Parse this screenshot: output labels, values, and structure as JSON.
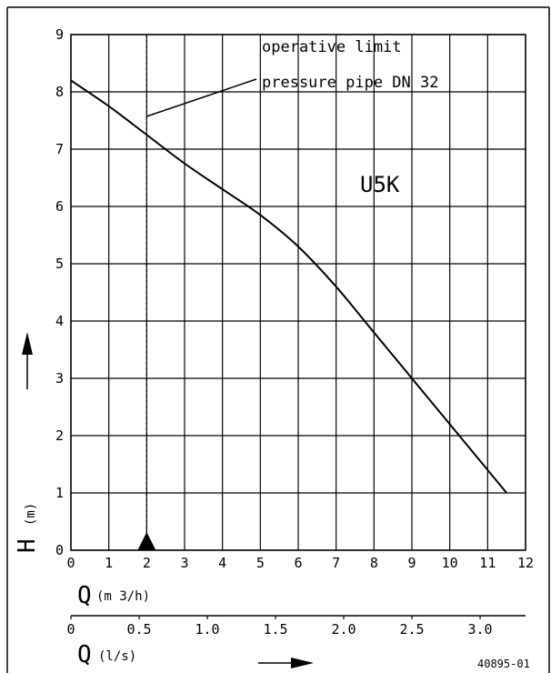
{
  "chart_data": {
    "type": "line",
    "title": "",
    "curve_label": "U5K",
    "annotation": {
      "line1": "operative limit",
      "line2": "pressure pipe DN 32",
      "limit_x": 2
    },
    "x_axis": {
      "symbol": "Q",
      "unit": "(m 3/h)",
      "range": [
        0,
        12
      ],
      "ticks": [
        0,
        1,
        2,
        3,
        4,
        5,
        6,
        7,
        8,
        9,
        10,
        11,
        12
      ]
    },
    "x2_axis": {
      "symbol": "Q",
      "unit": "(l/s)",
      "range": [
        0,
        3.333
      ],
      "ticks": [
        {
          "v": 0,
          "label": "0"
        },
        {
          "v": 0.5,
          "label": "0.5"
        },
        {
          "v": 1.0,
          "label": "1.0"
        },
        {
          "v": 1.5,
          "label": "1.5"
        },
        {
          "v": 2.0,
          "label": "2.0"
        },
        {
          "v": 2.5,
          "label": "2.5"
        },
        {
          "v": 3.0,
          "label": "3.0"
        }
      ]
    },
    "y_axis": {
      "symbol": "H",
      "unit": "(m)",
      "range": [
        0,
        9
      ],
      "ticks": [
        0,
        1,
        2,
        3,
        4,
        5,
        6,
        7,
        8,
        9
      ]
    },
    "grid": true,
    "series": [
      {
        "x": [
          0,
          1,
          2,
          3,
          4,
          5,
          6,
          7,
          8,
          9,
          10,
          11,
          11.5
        ],
        "y": [
          8.2,
          7.75,
          7.25,
          6.75,
          6.3,
          5.85,
          5.3,
          4.6,
          3.8,
          3.0,
          2.2,
          1.4,
          1.0
        ]
      }
    ],
    "figure_code": "40895-01"
  }
}
